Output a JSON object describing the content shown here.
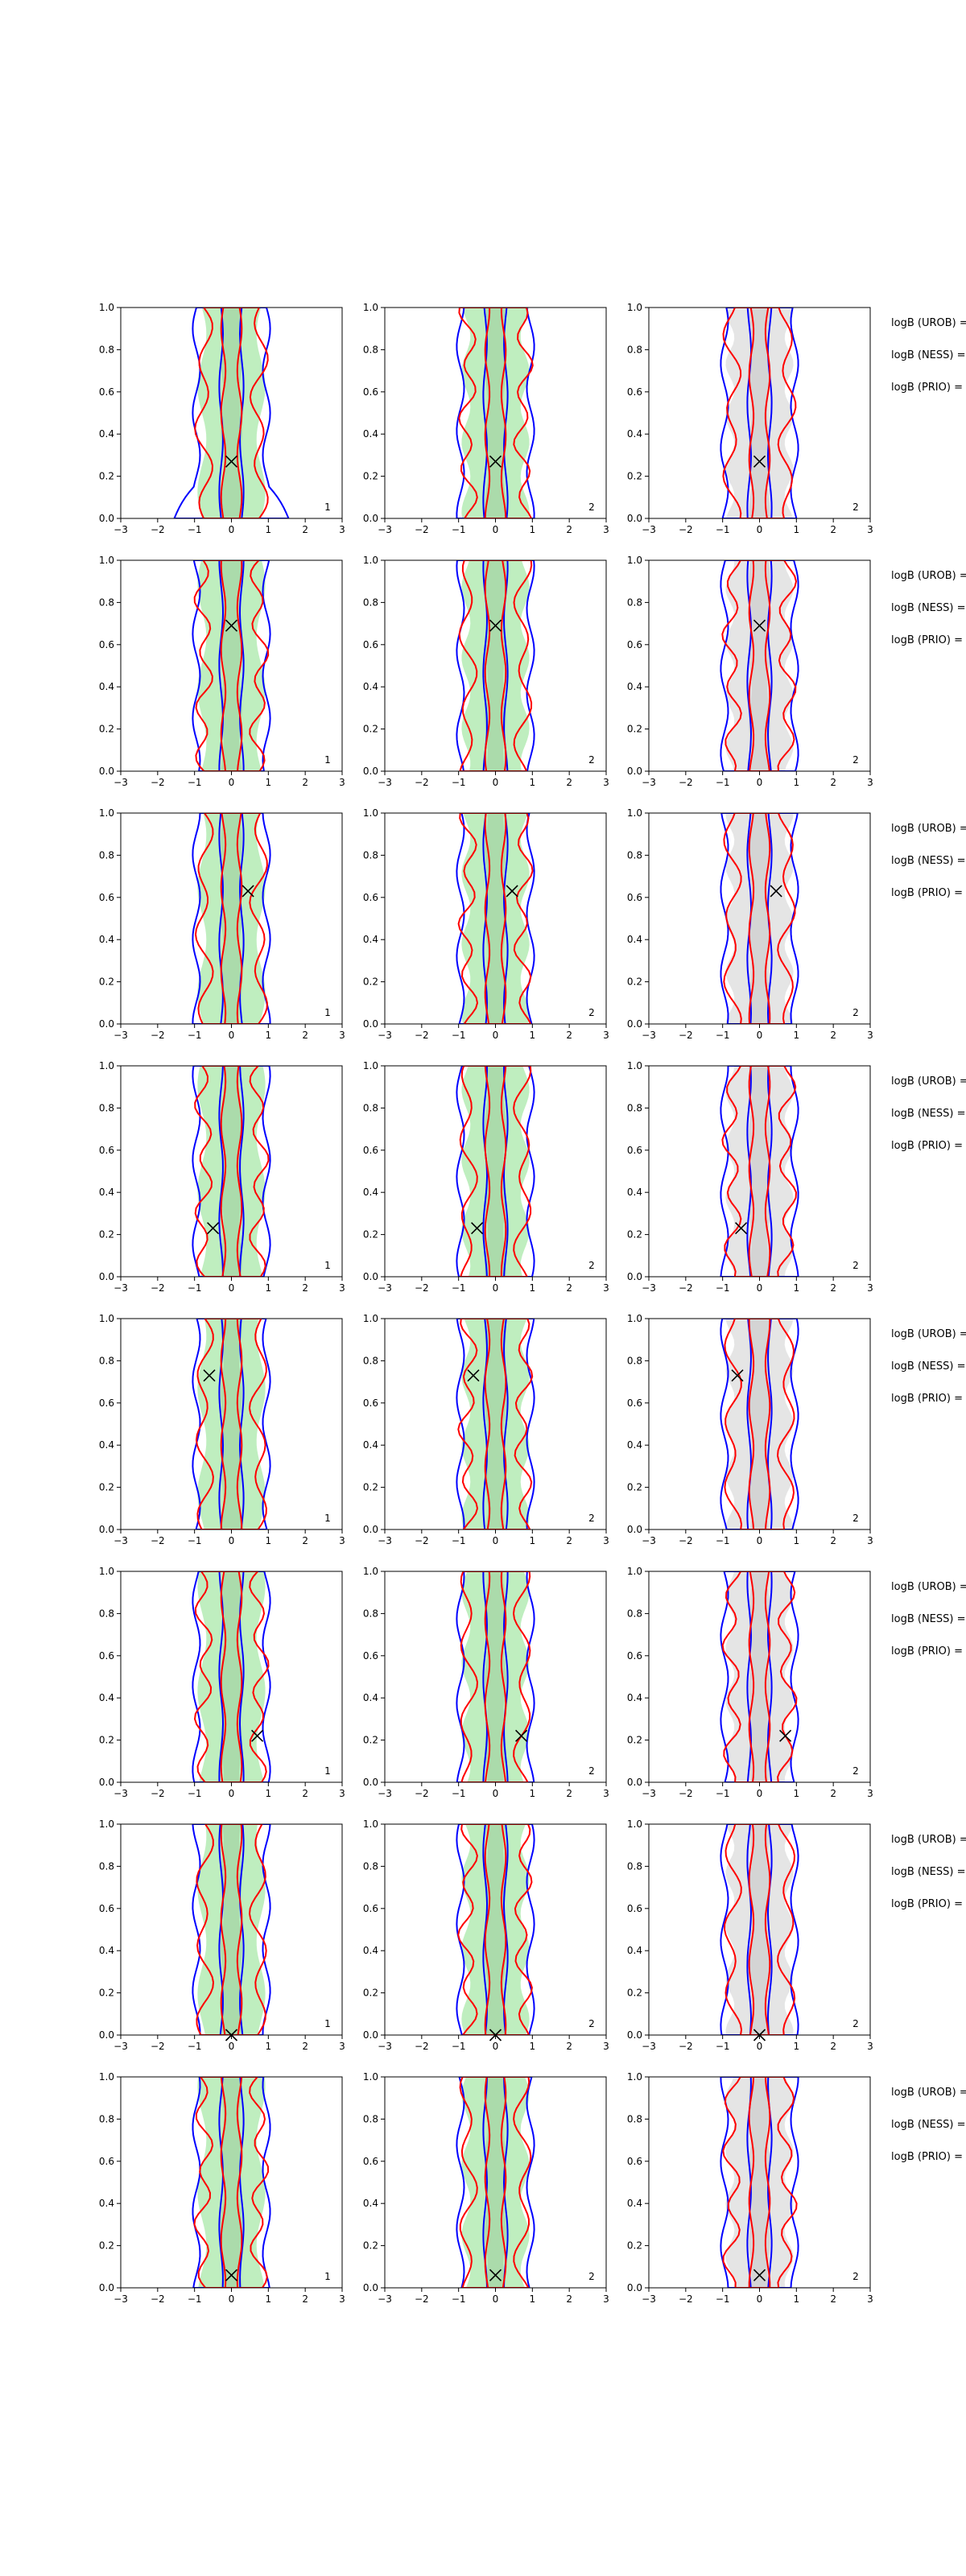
{
  "chart_data": {
    "type": "contour",
    "layout": {
      "rows": 8,
      "cols": 3
    },
    "xlim": [
      -3,
      3
    ],
    "ylim": [
      0,
      1
    ],
    "x_ticks": [
      "−3",
      "−2",
      "−1",
      "0",
      "1",
      "2",
      "3"
    ],
    "y_ticks": [
      "0.0",
      "0.2",
      "0.4",
      "0.6",
      "0.8",
      "1.0"
    ],
    "series_colors": {
      "red": "#ff0000",
      "blue": "#0000ff",
      "green_fill": "#b8ecb8",
      "gray_fill": "#e2e2e2",
      "marker": "#000000"
    },
    "panel_corner_labels": [
      "1",
      "2",
      "2"
    ],
    "side_labels": [
      "logB (UROB) =",
      "logB (NESS) =",
      "logB (PRIO) ="
    ],
    "rows": [
      {
        "marker": {
          "x": 0.0,
          "y": 0.27
        }
      },
      {
        "marker": {
          "x": 0.0,
          "y": 0.69
        }
      },
      {
        "marker": {
          "x": 0.45,
          "y": 0.63
        }
      },
      {
        "marker": {
          "x": -0.5,
          "y": 0.23
        }
      },
      {
        "marker": {
          "x": -0.6,
          "y": 0.73
        }
      },
      {
        "marker": {
          "x": 0.7,
          "y": 0.22
        }
      },
      {
        "marker": {
          "x": 0.0,
          "y": 0.0
        }
      },
      {
        "marker": {
          "x": 0.0,
          "y": 0.06
        }
      }
    ]
  }
}
